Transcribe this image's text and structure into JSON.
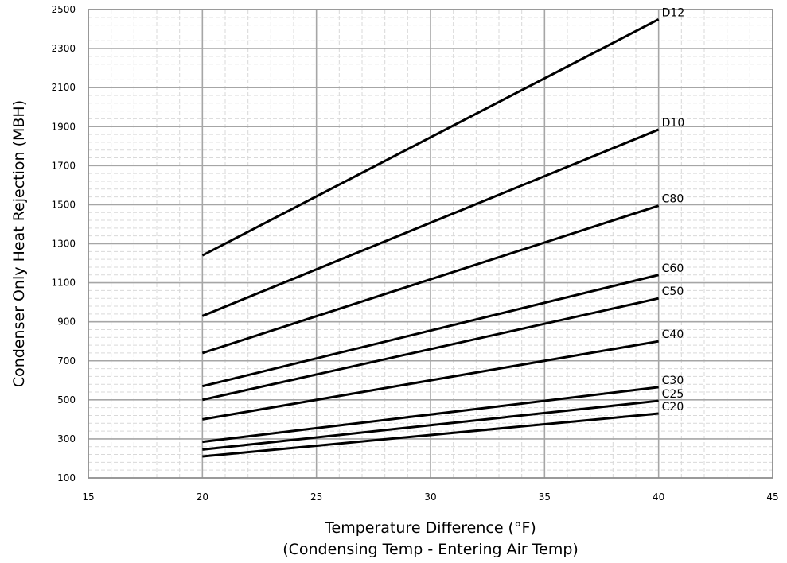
{
  "chart_data": {
    "type": "line",
    "title": "",
    "xlabel": [
      "Temperature Difference (°F)",
      "(Condensing Temp - Entering Air Temp)"
    ],
    "ylabel": "Condenser Only Heat Rejection (MBH)",
    "xlim": [
      15,
      45
    ],
    "ylim": [
      100,
      2500
    ],
    "xticks": [
      15,
      20,
      25,
      30,
      35,
      40,
      45
    ],
    "yticks": [
      100,
      300,
      500,
      700,
      900,
      1100,
      1300,
      1500,
      1700,
      1900,
      2100,
      2300,
      2500
    ],
    "grid": {
      "major": true,
      "minor": true,
      "minor_style": "dashed"
    },
    "legend": "none (series labeled at line ends)",
    "x": [
      20,
      40
    ],
    "series": [
      {
        "name": "D12",
        "values": [
          1240,
          2450
        ]
      },
      {
        "name": "D10",
        "values": [
          930,
          1885
        ]
      },
      {
        "name": "C80",
        "values": [
          740,
          1495
        ]
      },
      {
        "name": "C60",
        "values": [
          570,
          1140
        ]
      },
      {
        "name": "C50",
        "values": [
          500,
          1020
        ]
      },
      {
        "name": "C40",
        "values": [
          400,
          800
        ]
      },
      {
        "name": "C30",
        "values": [
          285,
          565
        ]
      },
      {
        "name": "C25",
        "values": [
          245,
          495
        ]
      },
      {
        "name": "C20",
        "values": [
          210,
          430
        ]
      }
    ],
    "colors": {
      "line": "#000000",
      "major_grid": "#a6a6a6",
      "minor_grid": "#d9d9d9",
      "frame": "#8c8c8c"
    }
  }
}
